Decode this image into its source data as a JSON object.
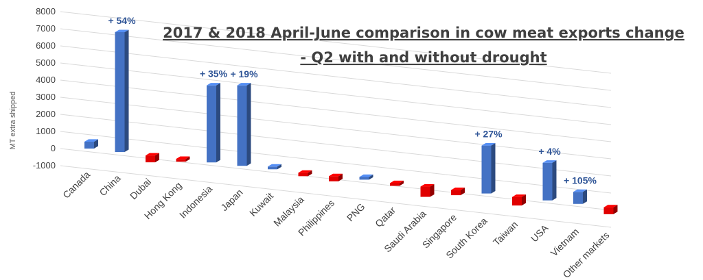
{
  "chart_data": {
    "type": "bar",
    "title_lines": [
      "2017 & 2018 April-June comparison in cow meat exports change",
      "- Q2 with and without drought"
    ],
    "xlabel": "",
    "ylabel": "MT extra shipped",
    "ylim": [
      -1000,
      8000
    ],
    "yticks": [
      -1000,
      0,
      1000,
      2000,
      3000,
      4000,
      5000,
      6000,
      7000,
      8000
    ],
    "categories": [
      "Canada",
      "China",
      "Dubai",
      "Hong Kong",
      "Indonesia",
      "Japan",
      "Kuwait",
      "Malaysia",
      "Philippines",
      "PNG",
      "Qatar",
      "Saudi Arabia",
      "Singapore",
      "South Korea",
      "Taiwan",
      "USA",
      "Vietnam",
      "Other markets"
    ],
    "values": [
      400,
      7000,
      -400,
      -100,
      4500,
      4700,
      50,
      -200,
      -300,
      0,
      -150,
      -600,
      -300,
      2800,
      -500,
      2200,
      700,
      -400
    ],
    "data_labels": [
      "",
      "+ 54%",
      "",
      "",
      "+ 35%",
      "+ 19%",
      "",
      "",
      "",
      "",
      "",
      "",
      "",
      "+ 27%",
      "",
      "+ 4%",
      "+ 105%",
      ""
    ],
    "colors": {
      "positive": "#4472c4",
      "negative": "#e00000"
    },
    "grid": true,
    "legend": "none",
    "style": "3d-column"
  }
}
